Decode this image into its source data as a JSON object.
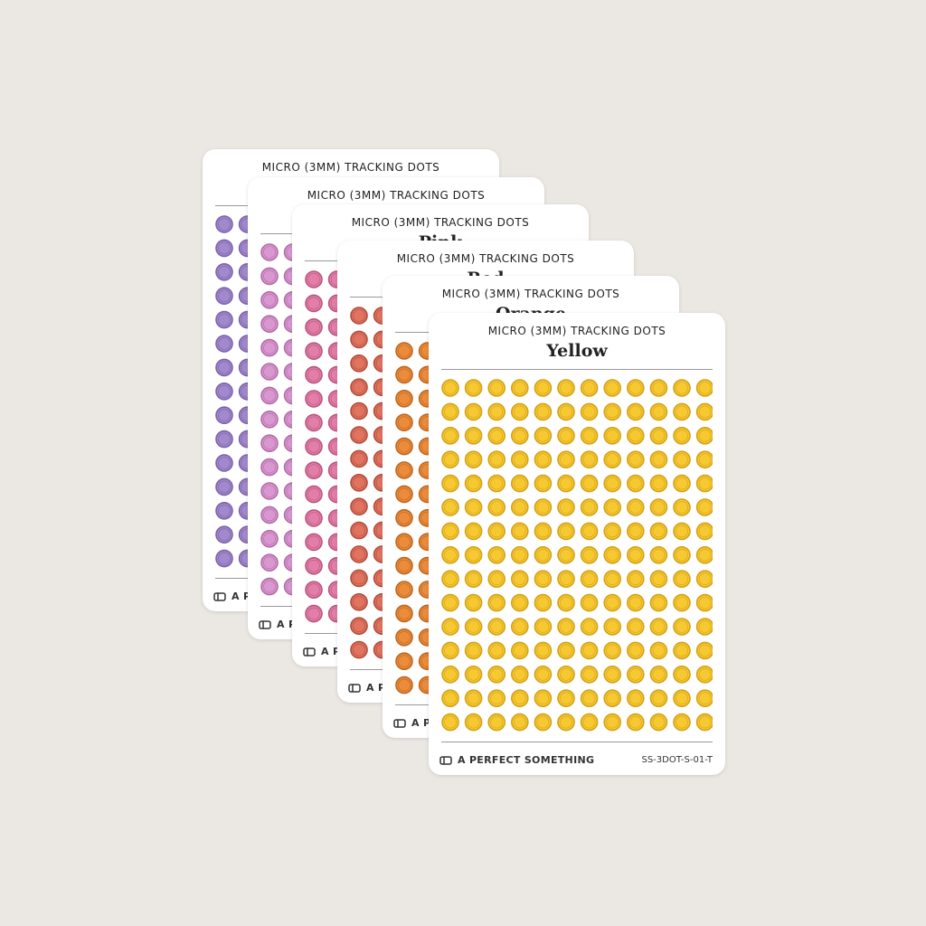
{
  "sheets": [
    {
      "title": "MICRO (3MM) TRACKING DOTS",
      "brand": "A PERFECT SOMETHING"
    },
    {
      "title": "MICRO (3MM) TRACKING DOTS",
      "brand": "A PERFECT SOMETHING"
    },
    {
      "title": "MICRO (3MM) TRACKING DOTS",
      "name": "Pink",
      "brand": "A PERFECT SOMETHING"
    },
    {
      "title": "MICRO (3MM) TRACKING DOTS",
      "name": "Red",
      "brand": "A PERFECT SOMETHING"
    },
    {
      "title": "MICRO (3MM) TRACKING DOTS",
      "name": "Orange",
      "brand": "A PERFECT SOMETHING"
    },
    {
      "title": "MICRO (3MM) TRACKING DOTS",
      "name": "Yellow",
      "brand": "A PERFECT SOMETHING",
      "code": "SS-3DOT-S-01-T"
    }
  ]
}
